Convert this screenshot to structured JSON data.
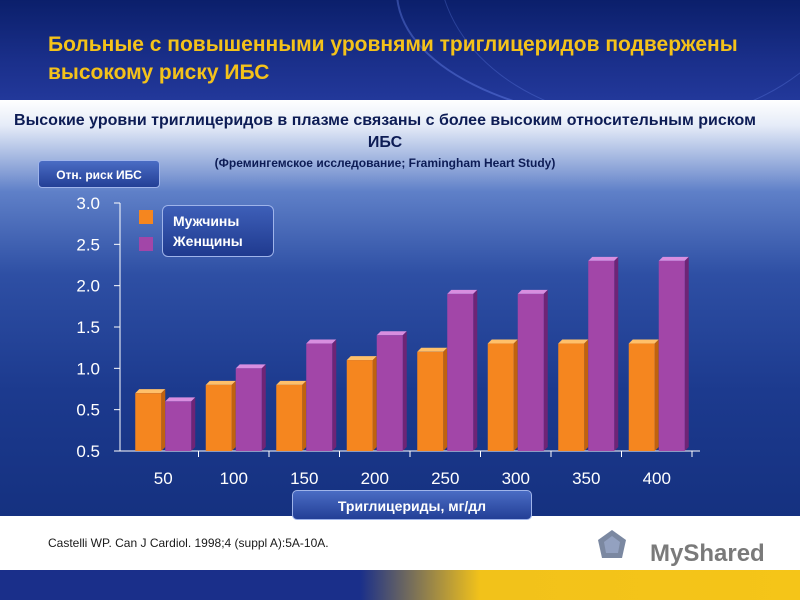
{
  "slide": {
    "title": "Больные с повышенными уровнями триглицеридов подвержены высокому риску ИБС",
    "panel_title": "Высокие уровни триглицеридов в плазме связаны с более высоким относительным риском ИБС",
    "panel_subtitle": "(Фремингемское исследование; Framingham Heart Study)",
    "source": "Castelli WP. Can J Cardiol. 1998;4 (suppl A):5A-10A.",
    "logo_text": "MyShared"
  },
  "colors": {
    "men": "#f5861f",
    "women": "#a246a8",
    "title": "#f4c21a"
  },
  "chart_data": {
    "type": "bar",
    "ylabel": "Отн. риск ИБС",
    "xlabel": "Триглицериды, мг/дл",
    "categories": [
      "50",
      "100",
      "150",
      "200",
      "250",
      "300",
      "350",
      "400"
    ],
    "series": [
      {
        "name": "Мужчины",
        "values": [
          0.7,
          0.8,
          0.8,
          1.1,
          1.2,
          1.3,
          1.3,
          1.3
        ]
      },
      {
        "name": "Женщины",
        "values": [
          0.6,
          1.0,
          1.3,
          1.4,
          1.9,
          1.9,
          2.3,
          2.3
        ]
      }
    ],
    "yticks": [
      "3.0",
      "2.5",
      "2.0",
      "1.5",
      "1.0",
      "0.5",
      "0.5"
    ],
    "ylim": [
      0.2,
      3.0
    ],
    "legend_position": "top-left"
  }
}
